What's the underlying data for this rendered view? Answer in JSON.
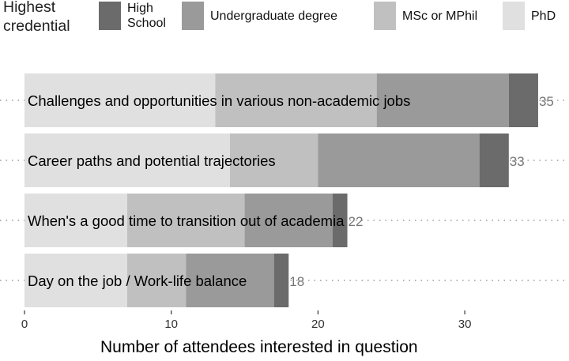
{
  "chart_data": {
    "type": "bar",
    "orientation": "horizontal",
    "stacked": true,
    "xlabel": "Number of attendees interested in question",
    "xlim": [
      0,
      36
    ],
    "xticks": [
      0,
      10,
      20,
      30
    ],
    "legend": {
      "title_lines": [
        "Highest",
        "credential"
      ],
      "placement": "top",
      "entries": [
        {
          "key": "hs",
          "lines": [
            "High",
            "School"
          ]
        },
        {
          "key": "ug",
          "lines": [
            "Undergraduate degree"
          ]
        },
        {
          "key": "msc",
          "lines": [
            "MSc or MPhil"
          ]
        },
        {
          "key": "phd",
          "lines": [
            "PhD"
          ]
        }
      ]
    },
    "colors": {
      "phd": "#e0e0e0",
      "msc": "#c0c0c0",
      "ug": "#9a9a9a",
      "hs": "#6b6b6b"
    },
    "stack_order": [
      "phd",
      "msc",
      "ug",
      "hs"
    ],
    "categories": [
      "Challenges and opportunities in various non-academic jobs",
      "Career paths and potential trajectories",
      "When's a good time to transition out of academia",
      "Day on the job / Work-life balance"
    ],
    "series": [
      {
        "name": "PhD",
        "key": "phd",
        "values": [
          13,
          14,
          7,
          7
        ]
      },
      {
        "name": "MSc or MPhil",
        "key": "msc",
        "values": [
          11,
          6,
          8,
          4
        ]
      },
      {
        "name": "Undergraduate degree",
        "key": "ug",
        "values": [
          9,
          11,
          6,
          6
        ]
      },
      {
        "name": "High School",
        "key": "hs",
        "values": [
          2,
          2,
          1,
          1
        ]
      }
    ],
    "totals": [
      35,
      33,
      22,
      18
    ],
    "grid": "dotted horizontal guide per bar"
  }
}
